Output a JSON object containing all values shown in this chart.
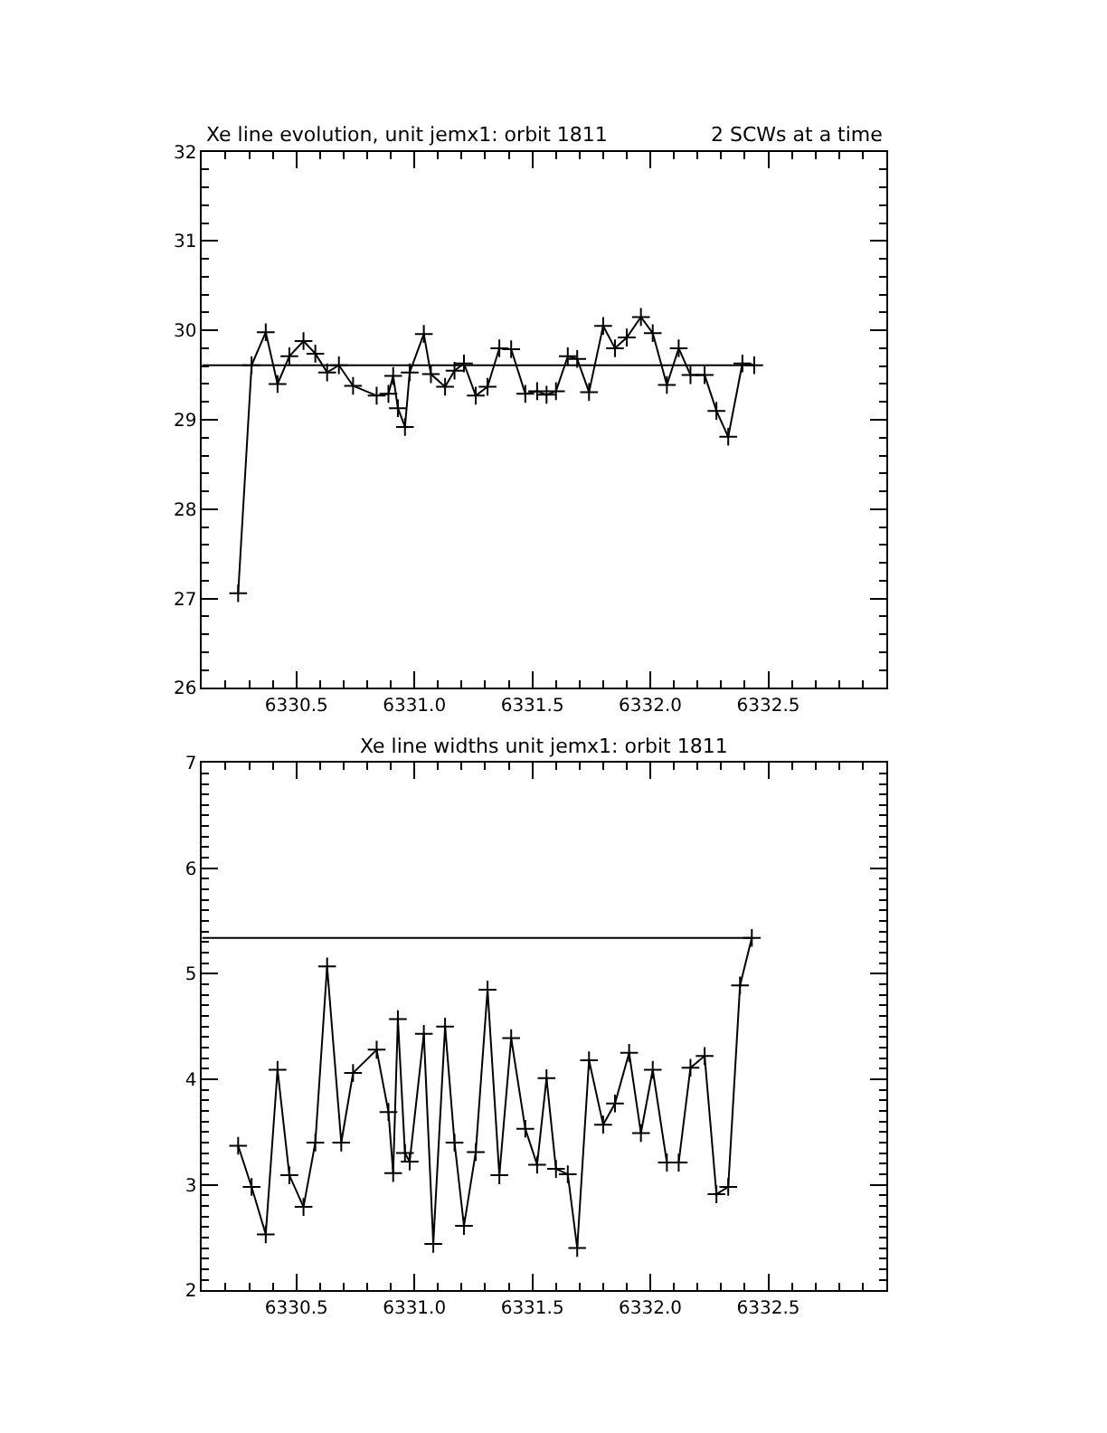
{
  "chart_data": [
    {
      "type": "line",
      "title": "Xe line evolution, unit jemx1: orbit 1811",
      "annotations": [
        "2 SCWs at a time"
      ],
      "marker": "cross",
      "line_style": "solid",
      "x": [
        6330.253,
        6330.31,
        6330.37,
        6330.42,
        6330.47,
        6330.53,
        6330.58,
        6330.63,
        6330.68,
        6330.74,
        6330.84,
        6330.89,
        6330.91,
        6330.93,
        6330.96,
        6330.98,
        6331.04,
        6331.07,
        6331.13,
        6331.17,
        6331.21,
        6331.26,
        6331.31,
        6331.36,
        6331.41,
        6331.47,
        6331.52,
        6331.56,
        6331.6,
        6331.65,
        6331.69,
        6331.74,
        6331.8,
        6331.85,
        6331.9,
        6331.96,
        6332.01,
        6332.07,
        6332.12,
        6332.17,
        6332.23,
        6332.28,
        6332.33,
        6332.39,
        6332.44
      ],
      "series": [
        {
          "color": "#000000",
          "values": [
            27.06,
            29.61,
            29.98,
            29.4,
            29.71,
            29.88,
            29.74,
            29.53,
            29.61,
            29.38,
            29.27,
            29.29,
            29.49,
            29.13,
            28.92,
            29.53,
            29.96,
            29.51,
            29.37,
            29.55,
            29.63,
            29.27,
            29.37,
            29.8,
            29.79,
            29.29,
            29.32,
            29.28,
            29.32,
            29.71,
            29.68,
            29.31,
            30.05,
            29.8,
            29.92,
            30.15,
            29.97,
            29.39,
            29.8,
            29.5,
            29.5,
            29.1,
            28.81,
            29.63,
            29.61
          ]
        }
      ],
      "ref_lines": [
        {
          "axis": "y",
          "value": 29.61,
          "color": "#000000"
        }
      ],
      "xlim": [
        6330.1,
        6333.0
      ],
      "xticks": [
        {
          "value": 6330.1,
          "label": null
        },
        {
          "value": 6330.2,
          "label": null
        },
        {
          "value": 6330.3,
          "label": null
        },
        {
          "value": 6330.4,
          "label": null
        },
        6330.5,
        {
          "value": 6330.6,
          "label": null
        },
        {
          "value": 6330.7,
          "label": null
        },
        {
          "value": 6330.8,
          "label": null
        },
        {
          "value": 6330.9,
          "label": null
        },
        {
          "value": 6331.0,
          "label": "6331.0"
        },
        {
          "value": 6331.1,
          "label": null
        },
        {
          "value": 6331.2,
          "label": null
        },
        {
          "value": 6331.3,
          "label": null
        },
        {
          "value": 6331.4,
          "label": null
        },
        6331.5,
        {
          "value": 6331.6,
          "label": null
        },
        {
          "value": 6331.7,
          "label": null
        },
        {
          "value": 6331.8,
          "label": null
        },
        {
          "value": 6331.9,
          "label": null
        },
        {
          "value": 6332.0,
          "label": "6332.0"
        },
        {
          "value": 6332.1,
          "label": null
        },
        {
          "value": 6332.2,
          "label": null
        },
        {
          "value": 6332.3,
          "label": null
        },
        {
          "value": 6332.4,
          "label": null
        },
        6332.5,
        {
          "value": 6332.6,
          "label": null
        },
        {
          "value": 6332.7,
          "label": null
        },
        {
          "value": 6332.8,
          "label": null
        },
        {
          "value": 6332.9,
          "label": null
        },
        {
          "value": 6333.0,
          "label": null
        }
      ],
      "ylim": [
        26,
        32
      ],
      "yticks": [
        26,
        {
          "value": 26.2,
          "label": null
        },
        {
          "value": 26.4,
          "label": null
        },
        {
          "value": 26.6,
          "label": null
        },
        {
          "value": 26.8,
          "label": null
        },
        27,
        {
          "value": 27.2,
          "label": null
        },
        {
          "value": 27.4,
          "label": null
        },
        {
          "value": 27.6,
          "label": null
        },
        {
          "value": 27.8,
          "label": null
        },
        28,
        {
          "value": 28.2,
          "label": null
        },
        {
          "value": 28.4,
          "label": null
        },
        {
          "value": 28.6,
          "label": null
        },
        {
          "value": 28.8,
          "label": null
        },
        29,
        {
          "value": 29.2,
          "label": null
        },
        {
          "value": 29.4,
          "label": null
        },
        {
          "value": 29.6,
          "label": null
        },
        {
          "value": 29.8,
          "label": null
        },
        30,
        {
          "value": 30.2,
          "label": null
        },
        {
          "value": 30.4,
          "label": null
        },
        {
          "value": 30.6,
          "label": null
        },
        {
          "value": 30.8,
          "label": null
        },
        31,
        {
          "value": 31.2,
          "label": null
        },
        {
          "value": 31.4,
          "label": null
        },
        {
          "value": 31.6,
          "label": null
        },
        {
          "value": 31.8,
          "label": null
        },
        32
      ]
    },
    {
      "type": "line",
      "title": "Xe line widths unit jemx1: orbit 1811",
      "marker": "cross",
      "line_style": "solid",
      "x": [
        6330.253,
        6330.31,
        6330.37,
        6330.42,
        6330.47,
        6330.53,
        6330.58,
        6330.63,
        6330.69,
        6330.74,
        6330.84,
        6330.89,
        6330.91,
        6330.93,
        6330.96,
        6330.98,
        6331.04,
        6331.08,
        6331.13,
        6331.17,
        6331.21,
        6331.26,
        6331.31,
        6331.36,
        6331.41,
        6331.47,
        6331.52,
        6331.56,
        6331.6,
        6331.65,
        6331.69,
        6331.74,
        6331.8,
        6331.85,
        6331.91,
        6331.96,
        6332.01,
        6332.07,
        6332.12,
        6332.17,
        6332.23,
        6332.28,
        6332.33,
        6332.38,
        6332.43
      ],
      "series": [
        {
          "color": "#000000",
          "values": [
            3.37,
            2.98,
            2.53,
            4.09,
            3.09,
            2.79,
            3.4,
            5.07,
            3.4,
            4.06,
            4.28,
            3.69,
            3.11,
            4.57,
            3.3,
            3.22,
            4.43,
            2.44,
            4.5,
            3.4,
            2.61,
            3.31,
            4.85,
            3.09,
            4.39,
            3.53,
            3.19,
            4.01,
            3.15,
            3.1,
            2.4,
            4.18,
            3.57,
            3.77,
            4.25,
            3.49,
            4.09,
            3.21,
            3.21,
            4.11,
            4.22,
            2.91,
            2.98,
            4.89,
            5.34
          ]
        }
      ],
      "ref_lines": [
        {
          "axis": "y",
          "value": 5.34,
          "color": "#000000"
        }
      ],
      "xlim": [
        6330.1,
        6333.0
      ],
      "xticks": [
        {
          "value": 6330.1,
          "label": null
        },
        {
          "value": 6330.2,
          "label": null
        },
        {
          "value": 6330.3,
          "label": null
        },
        {
          "value": 6330.4,
          "label": null
        },
        6330.5,
        {
          "value": 6330.6,
          "label": null
        },
        {
          "value": 6330.7,
          "label": null
        },
        {
          "value": 6330.8,
          "label": null
        },
        {
          "value": 6330.9,
          "label": null
        },
        {
          "value": 6331.0,
          "label": "6331.0"
        },
        {
          "value": 6331.1,
          "label": null
        },
        {
          "value": 6331.2,
          "label": null
        },
        {
          "value": 6331.3,
          "label": null
        },
        {
          "value": 6331.4,
          "label": null
        },
        6331.5,
        {
          "value": 6331.6,
          "label": null
        },
        {
          "value": 6331.7,
          "label": null
        },
        {
          "value": 6331.8,
          "label": null
        },
        {
          "value": 6331.9,
          "label": null
        },
        {
          "value": 6332.0,
          "label": "6332.0"
        },
        {
          "value": 6332.1,
          "label": null
        },
        {
          "value": 6332.2,
          "label": null
        },
        {
          "value": 6332.3,
          "label": null
        },
        {
          "value": 6332.4,
          "label": null
        },
        6332.5,
        {
          "value": 6332.6,
          "label": null
        },
        {
          "value": 6332.7,
          "label": null
        },
        {
          "value": 6332.8,
          "label": null
        },
        {
          "value": 6332.9,
          "label": null
        },
        {
          "value": 6333.0,
          "label": null
        }
      ],
      "ylim": [
        2,
        7
      ],
      "yticks": [
        2,
        {
          "value": 2.1,
          "label": null
        },
        {
          "value": 2.2,
          "label": null
        },
        {
          "value": 2.3,
          "label": null
        },
        {
          "value": 2.4,
          "label": null
        },
        {
          "value": 2.5,
          "label": null
        },
        {
          "value": 2.6,
          "label": null
        },
        {
          "value": 2.7,
          "label": null
        },
        {
          "value": 2.8,
          "label": null
        },
        {
          "value": 2.9,
          "label": null
        },
        3,
        {
          "value": 3.1,
          "label": null
        },
        {
          "value": 3.2,
          "label": null
        },
        {
          "value": 3.3,
          "label": null
        },
        {
          "value": 3.4,
          "label": null
        },
        {
          "value": 3.5,
          "label": null
        },
        {
          "value": 3.6,
          "label": null
        },
        {
          "value": 3.7,
          "label": null
        },
        {
          "value": 3.8,
          "label": null
        },
        {
          "value": 3.9,
          "label": null
        },
        4,
        {
          "value": 4.1,
          "label": null
        },
        {
          "value": 4.2,
          "label": null
        },
        {
          "value": 4.3,
          "label": null
        },
        {
          "value": 4.4,
          "label": null
        },
        {
          "value": 4.5,
          "label": null
        },
        {
          "value": 4.6,
          "label": null
        },
        {
          "value": 4.7,
          "label": null
        },
        {
          "value": 4.8,
          "label": null
        },
        {
          "value": 4.9,
          "label": null
        },
        5,
        {
          "value": 5.1,
          "label": null
        },
        {
          "value": 5.2,
          "label": null
        },
        {
          "value": 5.3,
          "label": null
        },
        {
          "value": 5.4,
          "label": null
        },
        {
          "value": 5.5,
          "label": null
        },
        {
          "value": 5.6,
          "label": null
        },
        {
          "value": 5.7,
          "label": null
        },
        {
          "value": 5.8,
          "label": null
        },
        {
          "value": 5.9,
          "label": null
        },
        6,
        {
          "value": 6.1,
          "label": null
        },
        {
          "value": 6.2,
          "label": null
        },
        {
          "value": 6.3,
          "label": null
        },
        {
          "value": 6.4,
          "label": null
        },
        {
          "value": 6.5,
          "label": null
        },
        {
          "value": 6.6,
          "label": null
        },
        {
          "value": 6.7,
          "label": null
        },
        {
          "value": 6.8,
          "label": null
        },
        {
          "value": 6.9,
          "label": null
        },
        7
      ]
    }
  ]
}
